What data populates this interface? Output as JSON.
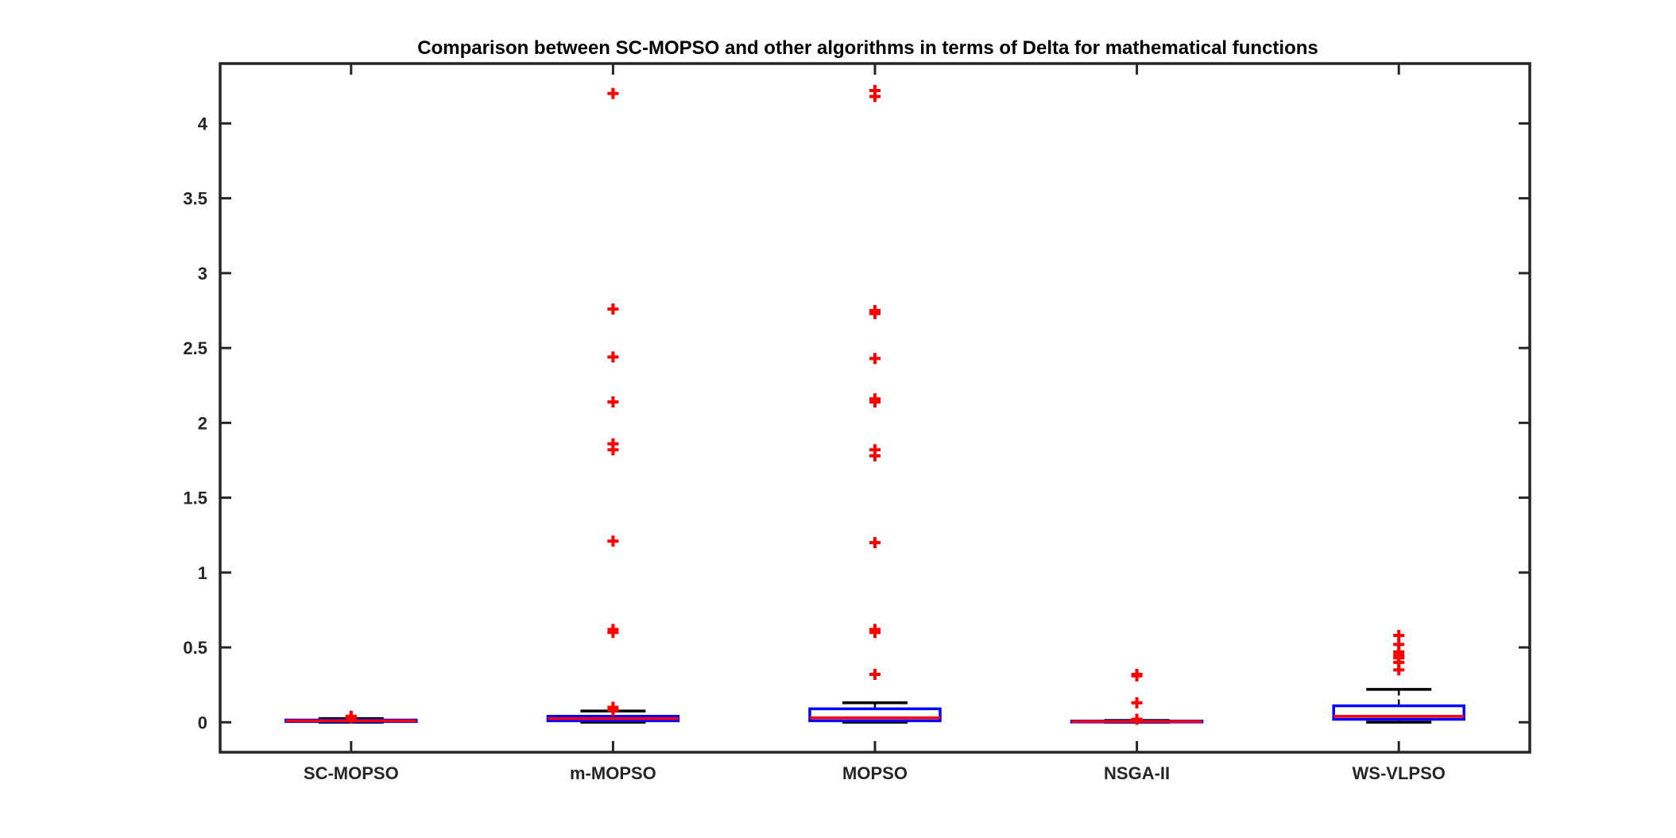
{
  "chart_data": {
    "type": "boxplot",
    "title": "Comparison between SC-MOPSO and other algorithms in terms of Delta for mathematical functions",
    "xlabel": "",
    "ylabel": "",
    "ylim": [
      -0.2,
      4.4
    ],
    "yticks": [
      0,
      0.5,
      1,
      1.5,
      2,
      2.5,
      3,
      3.5,
      4
    ],
    "ytick_labels": [
      "0",
      "0.5",
      "1",
      "1.5",
      "2",
      "2.5",
      "3",
      "3.5",
      "4"
    ],
    "categories": [
      "SC-MOPSO",
      "m-MOPSO",
      "MOPSO",
      "NSGA-II",
      "WS-VLPSO"
    ],
    "colors": {
      "box": "#0000ff",
      "median": "#ff0000",
      "whisker": "#000000",
      "outlier": "#ff0000",
      "axes": "#262626"
    },
    "boxes": [
      {
        "name": "SC-MOPSO",
        "lower_whisker": 0.0,
        "q1": 0.005,
        "median": 0.01,
        "q3": 0.015,
        "upper_whisker": 0.025,
        "outliers": [
          0.03,
          0.04
        ]
      },
      {
        "name": "m-MOPSO",
        "lower_whisker": 0.0,
        "q1": 0.01,
        "median": 0.025,
        "q3": 0.04,
        "upper_whisker": 0.075,
        "outliers": [
          0.08,
          0.1,
          0.6,
          0.62,
          1.21,
          1.82,
          1.86,
          2.14,
          2.44,
          2.76,
          4.2
        ]
      },
      {
        "name": "MOPSO",
        "lower_whisker": 0.0,
        "q1": 0.01,
        "median": 0.03,
        "q3": 0.09,
        "upper_whisker": 0.13,
        "outliers": [
          0.32,
          0.6,
          0.62,
          1.2,
          1.78,
          1.82,
          2.14,
          2.16,
          2.43,
          2.73,
          2.75,
          4.18,
          4.22
        ]
      },
      {
        "name": "NSGA-II",
        "lower_whisker": 0.0,
        "q1": 0.002,
        "median": 0.005,
        "q3": 0.008,
        "upper_whisker": 0.012,
        "outliers": [
          0.02,
          0.13,
          0.31,
          0.32
        ]
      },
      {
        "name": "WS-VLPSO",
        "lower_whisker": 0.0,
        "q1": 0.02,
        "median": 0.04,
        "q3": 0.11,
        "upper_whisker": 0.22,
        "outliers": [
          0.35,
          0.4,
          0.43,
          0.45,
          0.47,
          0.52,
          0.58
        ]
      }
    ]
  }
}
